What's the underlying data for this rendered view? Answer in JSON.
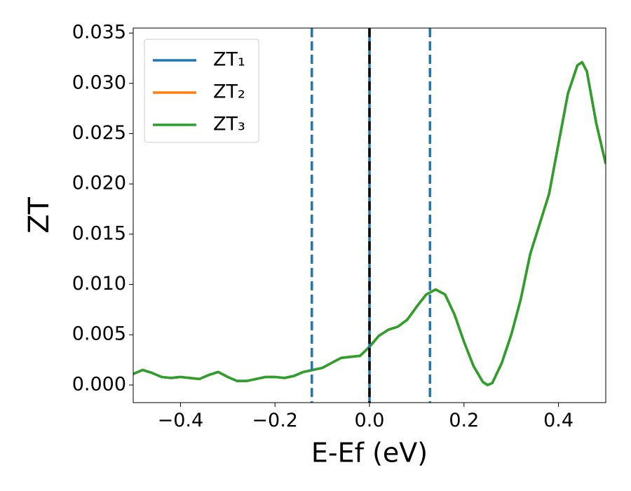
{
  "chart_data": {
    "type": "line",
    "xlabel": "E-Ef (eV)",
    "ylabel": "ZT",
    "x": [
      -0.5,
      -0.48,
      -0.46,
      -0.44,
      -0.42,
      -0.4,
      -0.38,
      -0.36,
      -0.34,
      -0.32,
      -0.3,
      -0.28,
      -0.26,
      -0.24,
      -0.22,
      -0.2,
      -0.18,
      -0.16,
      -0.14,
      -0.12,
      -0.1,
      -0.08,
      -0.06,
      -0.04,
      -0.02,
      0.0,
      0.02,
      0.04,
      0.06,
      0.08,
      0.1,
      0.12,
      0.14,
      0.16,
      0.18,
      0.2,
      0.22,
      0.24,
      0.25,
      0.26,
      0.28,
      0.3,
      0.32,
      0.34,
      0.36,
      0.38,
      0.4,
      0.42,
      0.44,
      0.45,
      0.46,
      0.48,
      0.5
    ],
    "series": [
      {
        "name": "ZT₁",
        "color": "#1f77b4",
        "values": [
          0.0011,
          0.0015,
          0.0012,
          0.0008,
          0.0007,
          0.0008,
          0.0007,
          0.0006,
          0.001,
          0.0013,
          0.0008,
          0.0004,
          0.0004,
          0.0006,
          0.0008,
          0.0008,
          0.0007,
          0.0009,
          0.0013,
          0.0015,
          0.0017,
          0.0022,
          0.0027,
          0.0028,
          0.0029,
          0.0038,
          0.0049,
          0.0055,
          0.0058,
          0.0065,
          0.0078,
          0.009,
          0.0095,
          0.009,
          0.007,
          0.0043,
          0.0019,
          0.0003,
          0.0,
          0.0002,
          0.0022,
          0.005,
          0.0085,
          0.013,
          0.016,
          0.019,
          0.024,
          0.029,
          0.0318,
          0.0321,
          0.0312,
          0.026,
          0.022
        ]
      },
      {
        "name": "ZT₂",
        "color": "#ff7f0e",
        "values": [
          0.0011,
          0.0015,
          0.0012,
          0.0008,
          0.0007,
          0.0008,
          0.0007,
          0.0006,
          0.001,
          0.0013,
          0.0008,
          0.0004,
          0.0004,
          0.0006,
          0.0008,
          0.0008,
          0.0007,
          0.0009,
          0.0013,
          0.0015,
          0.0017,
          0.0022,
          0.0027,
          0.0028,
          0.0029,
          0.0038,
          0.0049,
          0.0055,
          0.0058,
          0.0065,
          0.0078,
          0.009,
          0.0095,
          0.009,
          0.007,
          0.0043,
          0.0019,
          0.0003,
          0.0,
          0.0002,
          0.0022,
          0.005,
          0.0085,
          0.013,
          0.016,
          0.019,
          0.024,
          0.029,
          0.0318,
          0.0321,
          0.0312,
          0.026,
          0.022
        ]
      },
      {
        "name": "ZT₃",
        "color": "#2ca02c",
        "values": [
          0.0011,
          0.0015,
          0.0012,
          0.0008,
          0.0007,
          0.0008,
          0.0007,
          0.0006,
          0.001,
          0.0013,
          0.0008,
          0.0004,
          0.0004,
          0.0006,
          0.0008,
          0.0008,
          0.0007,
          0.0009,
          0.0013,
          0.0015,
          0.0017,
          0.0022,
          0.0027,
          0.0028,
          0.0029,
          0.0038,
          0.0049,
          0.0055,
          0.0058,
          0.0065,
          0.0078,
          0.009,
          0.0095,
          0.009,
          0.007,
          0.0043,
          0.0019,
          0.0003,
          0.0,
          0.0002,
          0.0022,
          0.005,
          0.0085,
          0.013,
          0.016,
          0.019,
          0.024,
          0.029,
          0.0318,
          0.0321,
          0.0312,
          0.026,
          0.022
        ]
      }
    ],
    "vlines": [
      {
        "x": -0.122,
        "color": "#1f77b4",
        "style": "dashed"
      },
      {
        "x": 0.128,
        "color": "#1f77b4",
        "style": "dashed"
      },
      {
        "x": 0.0,
        "color": "#1f77b4",
        "style": "solid"
      },
      {
        "x": 0.0,
        "color": "#000000",
        "style": "dashed"
      }
    ],
    "xlim": [
      -0.5,
      0.5
    ],
    "xticks": [
      {
        "value": -0.4,
        "label": "−0.4"
      },
      {
        "value": -0.2,
        "label": "−0.2"
      },
      {
        "value": 0.0,
        "label": "0.0"
      },
      0.2,
      0.4
    ],
    "ylim": [
      -0.00175,
      0.0355
    ],
    "yticks": [
      {
        "value": 0.0,
        "label": "0.000"
      },
      0.005,
      {
        "value": 0.01,
        "label": "0.010"
      },
      0.015,
      {
        "value": 0.02,
        "label": "0.020"
      },
      0.025,
      {
        "value": 0.03,
        "label": "0.030"
      },
      0.035
    ],
    "legend": "upper left",
    "grid": false
  }
}
